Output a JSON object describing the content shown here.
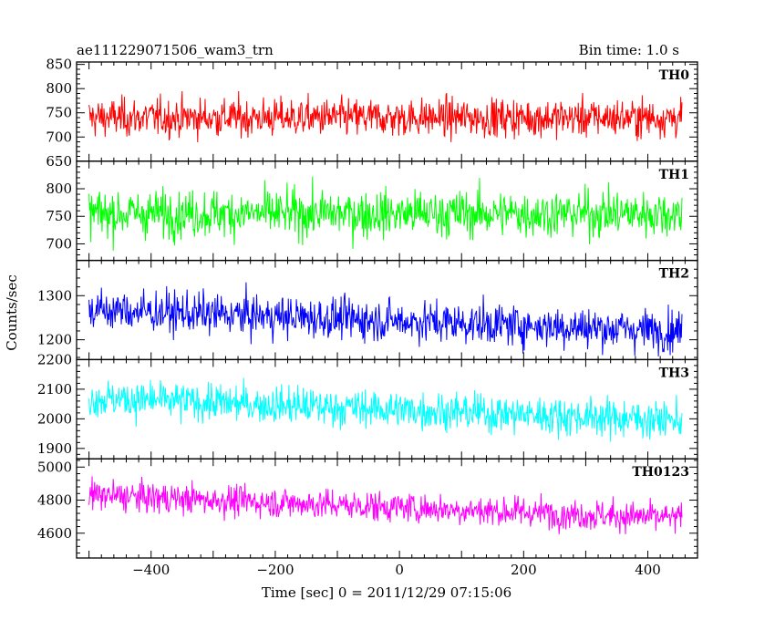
{
  "header": {
    "title": "ae111229071506_wam3_trn",
    "bin_time": "Bin time: 1.0 s"
  },
  "chart_data": {
    "type": "line",
    "xlabel": "Time [sec] 0 = 2011/12/29 07:15:06",
    "ylabel": "Counts/sec",
    "xlim": [
      -520,
      480
    ],
    "x_start": -500,
    "x_end": 455,
    "x_ticks": [
      -400,
      -200,
      0,
      200,
      400
    ],
    "x_tick_labels": [
      "−400",
      "−200",
      "0",
      "200",
      "400"
    ],
    "panels": [
      {
        "name": "TH0",
        "color": "#ff0000",
        "ylim": [
          650,
          855
        ],
        "ticks": [
          650,
          700,
          750,
          800,
          850
        ],
        "tick_labels": [
          "650",
          "700",
          "750",
          "800",
          "850"
        ],
        "mean_start": 740,
        "mean_end": 740,
        "spread": 28
      },
      {
        "name": "TH1",
        "color": "#00ff00",
        "ylim": [
          670,
          850
        ],
        "ticks": [
          700,
          750,
          800
        ],
        "tick_labels": [
          "700",
          "750",
          "800"
        ],
        "mean_start": 755,
        "mean_end": 755,
        "spread": 30
      },
      {
        "name": "TH2",
        "color": "#0000ff",
        "ylim": [
          1155,
          1380
        ],
        "ticks": [
          1200,
          1300
        ],
        "tick_labels": [
          "1200",
          "1300"
        ],
        "mean_start": 1268,
        "mean_end": 1220,
        "spread": 33
      },
      {
        "name": "TH3",
        "color": "#00ffff",
        "ylim": [
          1865,
          2200
        ],
        "ticks": [
          1900,
          2000,
          2100,
          2200
        ],
        "tick_labels": [
          "1900",
          "2000",
          "2100",
          "2200"
        ],
        "mean_start": 2070,
        "mean_end": 1995,
        "spread": 45
      },
      {
        "name": "TH0123",
        "color": "#ff00ff",
        "ylim": [
          4450,
          5050
        ],
        "ticks": [
          4600,
          4800,
          5000
        ],
        "tick_labels": [
          "4600",
          "4800",
          "5000"
        ],
        "mean_start": 4830,
        "mean_end": 4690,
        "spread": 65
      }
    ]
  }
}
